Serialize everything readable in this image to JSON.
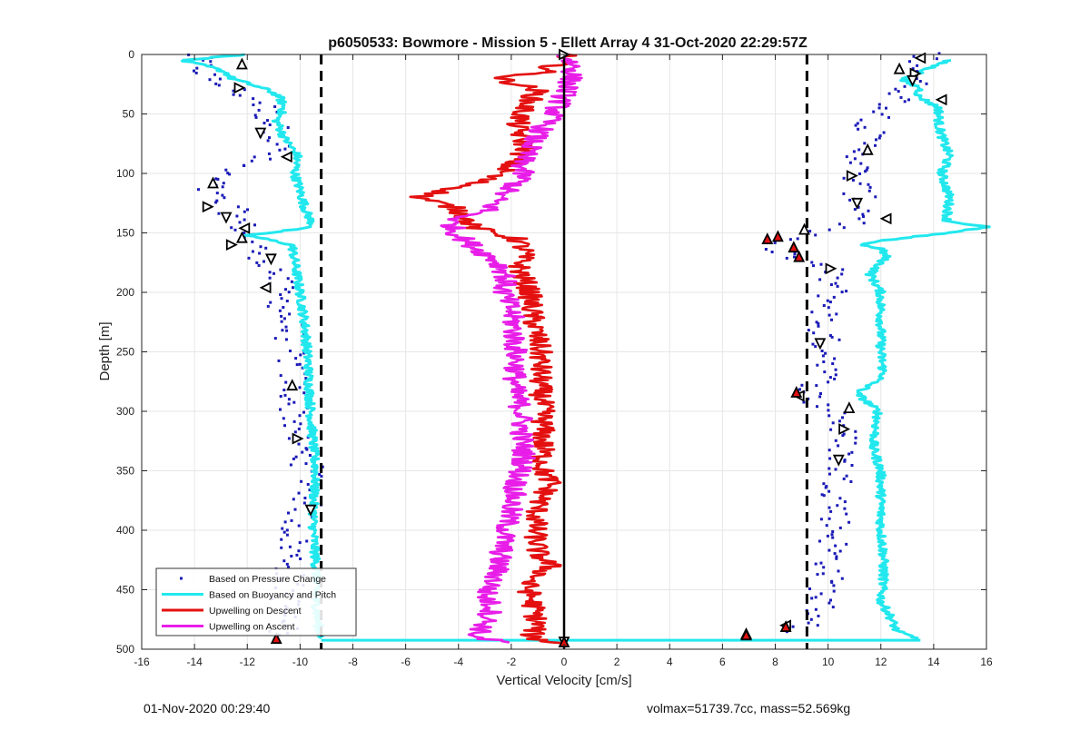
{
  "chart_data": {
    "type": "scatter",
    "title": "p6050533: Bowmore - Mission 5 - Ellett Array 4 31-Oct-2020 22:29:57Z",
    "xlabel": "Vertical Velocity [cm/s]",
    "ylabel": "Depth [m]",
    "xlim": [
      -16,
      16
    ],
    "ylim": [
      0,
      500
    ],
    "y_reversed": true,
    "grid": true,
    "legend_position": "bottom-left",
    "xticks": [
      -16,
      -14,
      -12,
      -10,
      -8,
      -6,
      -4,
      -2,
      0,
      2,
      4,
      6,
      8,
      10,
      12,
      14,
      16
    ],
    "yticks": [
      0,
      50,
      100,
      150,
      200,
      250,
      300,
      350,
      400,
      450,
      500
    ],
    "reference_lines": {
      "zero": {
        "x": 0,
        "color": "#000000",
        "style": "solid"
      },
      "limits": {
        "x": [
          -9.2,
          9.2
        ],
        "color": "#000000",
        "style": "dashed"
      }
    },
    "series": [
      {
        "name": "Based on Pressure Change",
        "kind": "markers",
        "color": "#1a1ab8",
        "descent_anchors": [
          [
            0,
            -14
          ],
          [
            20,
            -13.5
          ],
          [
            40,
            -11.5
          ],
          [
            60,
            -11
          ],
          [
            80,
            -10.8
          ],
          [
            100,
            -13
          ],
          [
            115,
            -13.6
          ],
          [
            130,
            -12.6
          ],
          [
            140,
            -12.3
          ],
          [
            160,
            -11.8
          ],
          [
            180,
            -11
          ],
          [
            200,
            -10.8
          ],
          [
            230,
            -10.4
          ],
          [
            260,
            -10.3
          ],
          [
            300,
            -10.2
          ],
          [
            330,
            -10
          ],
          [
            360,
            -9.5
          ],
          [
            380,
            -9.8
          ],
          [
            400,
            -10.2
          ],
          [
            440,
            -10.4
          ],
          [
            480,
            -10.6
          ],
          [
            490,
            -10.8
          ]
        ],
        "ascent_anchors": [
          [
            0,
            13.8
          ],
          [
            20,
            13.4
          ],
          [
            40,
            12.6
          ],
          [
            60,
            11.6
          ],
          [
            80,
            11.4
          ],
          [
            100,
            11
          ],
          [
            120,
            11.2
          ],
          [
            140,
            11.5
          ],
          [
            150,
            9.2
          ],
          [
            158,
            8
          ],
          [
            170,
            8.5
          ],
          [
            180,
            10
          ],
          [
            200,
            10.2
          ],
          [
            230,
            9.7
          ],
          [
            260,
            10.2
          ],
          [
            290,
            9.2
          ],
          [
            300,
            10.4
          ],
          [
            330,
            10.6
          ],
          [
            360,
            10.4
          ],
          [
            400,
            10.3
          ],
          [
            440,
            10
          ],
          [
            480,
            9.5
          ],
          [
            488,
            7.2
          ]
        ]
      },
      {
        "name": "Based on Buoyancy and Pitch",
        "kind": "line",
        "color": "#22e8ee",
        "descent_anchors": [
          [
            0,
            -12
          ],
          [
            5,
            -14.5
          ],
          [
            10,
            -13.5
          ],
          [
            15,
            -12.8
          ],
          [
            20,
            -12.6
          ],
          [
            25,
            -11.9
          ],
          [
            30,
            -11.2
          ],
          [
            35,
            -10.8
          ],
          [
            45,
            -10.6
          ],
          [
            55,
            -10.9
          ],
          [
            70,
            -10.6
          ],
          [
            85,
            -10.1
          ],
          [
            100,
            -10.2
          ],
          [
            115,
            -10.0
          ],
          [
            130,
            -9.8
          ],
          [
            145,
            -9.5
          ],
          [
            152,
            -12.0
          ],
          [
            160,
            -10.3
          ],
          [
            175,
            -10.2
          ],
          [
            200,
            -10.0
          ],
          [
            230,
            -9.8
          ],
          [
            260,
            -9.7
          ],
          [
            300,
            -9.6
          ],
          [
            330,
            -9.5
          ],
          [
            350,
            -9.4
          ],
          [
            380,
            -9.5
          ],
          [
            400,
            -9.5
          ],
          [
            430,
            -9.4
          ],
          [
            460,
            -9.4
          ],
          [
            480,
            -9.3
          ],
          [
            491,
            -9.2
          ]
        ],
        "ascent_anchors": [
          [
            492,
            13.5
          ],
          [
            485,
            12.6
          ],
          [
            470,
            12.3
          ],
          [
            460,
            12.0
          ],
          [
            440,
            12.1
          ],
          [
            420,
            12.1
          ],
          [
            400,
            12.0
          ],
          [
            380,
            12.0
          ],
          [
            350,
            12.0
          ],
          [
            330,
            11.7
          ],
          [
            300,
            11.9
          ],
          [
            285,
            11.1
          ],
          [
            270,
            12.1
          ],
          [
            250,
            12.0
          ],
          [
            230,
            12.0
          ],
          [
            200,
            12.0
          ],
          [
            185,
            11.6
          ],
          [
            170,
            12.2
          ],
          [
            163,
            12.0
          ],
          [
            160,
            11.2
          ],
          [
            155,
            12.5
          ],
          [
            150,
            14.5
          ],
          [
            145,
            16.0
          ],
          [
            140,
            14.5
          ],
          [
            120,
            14.6
          ],
          [
            100,
            14.3
          ],
          [
            85,
            14.6
          ],
          [
            75,
            14.4
          ],
          [
            60,
            14.2
          ],
          [
            45,
            14.2
          ],
          [
            40,
            13.8
          ],
          [
            35,
            13.4
          ],
          [
            28,
            13.5
          ],
          [
            22,
            12.8
          ],
          [
            15,
            13.5
          ],
          [
            5,
            14.5
          ]
        ],
        "bottom_turn": {
          "depth": 492.5,
          "from": -9.2,
          "to": 13.5
        }
      },
      {
        "name": "Upwelling on Descent",
        "kind": "line",
        "color": "#e41010",
        "anchors": [
          [
            0,
            0.1
          ],
          [
            8,
            -0.3
          ],
          [
            15,
            -0.8
          ],
          [
            20,
            -2.5
          ],
          [
            30,
            -1.0
          ],
          [
            45,
            -1.5
          ],
          [
            60,
            -1.8
          ],
          [
            80,
            -1.4
          ],
          [
            100,
            -2.4
          ],
          [
            110,
            -3.6
          ],
          [
            120,
            -5.5
          ],
          [
            130,
            -4.0
          ],
          [
            145,
            -3.5
          ],
          [
            155,
            -1.8
          ],
          [
            165,
            -1.5
          ],
          [
            180,
            -1.7
          ],
          [
            200,
            -1.3
          ],
          [
            220,
            -1.2
          ],
          [
            250,
            -0.9
          ],
          [
            280,
            -0.9
          ],
          [
            300,
            -0.8
          ],
          [
            330,
            -0.8
          ],
          [
            350,
            -0.8
          ],
          [
            360,
            -0.5
          ],
          [
            380,
            -1.0
          ],
          [
            400,
            -1.1
          ],
          [
            420,
            -1.0
          ],
          [
            430,
            -0.5
          ],
          [
            445,
            -1.4
          ],
          [
            460,
            -1.2
          ],
          [
            480,
            -1.0
          ],
          [
            490,
            -1.3
          ],
          [
            495,
            -0.2
          ]
        ]
      },
      {
        "name": "Upwelling on Ascent",
        "kind": "line",
        "color": "#e81ee8",
        "anchors": [
          [
            0,
            0.0
          ],
          [
            10,
            0.4
          ],
          [
            30,
            0.1
          ],
          [
            50,
            -0.4
          ],
          [
            70,
            -1.1
          ],
          [
            90,
            -1.6
          ],
          [
            105,
            -1.6
          ],
          [
            120,
            -2.5
          ],
          [
            130,
            -2.8
          ],
          [
            140,
            -4.3
          ],
          [
            150,
            -4.1
          ],
          [
            160,
            -3.5
          ],
          [
            175,
            -2.5
          ],
          [
            185,
            -2.2
          ],
          [
            200,
            -2.3
          ],
          [
            215,
            -2.0
          ],
          [
            230,
            -1.9
          ],
          [
            260,
            -1.8
          ],
          [
            280,
            -1.9
          ],
          [
            300,
            -1.6
          ],
          [
            320,
            -1.6
          ],
          [
            340,
            -1.5
          ],
          [
            360,
            -1.8
          ],
          [
            380,
            -2.0
          ],
          [
            400,
            -2.2
          ],
          [
            420,
            -2.4
          ],
          [
            440,
            -2.6
          ],
          [
            455,
            -3.0
          ],
          [
            465,
            -2.7
          ],
          [
            480,
            -3.0
          ],
          [
            490,
            -3.4
          ],
          [
            495,
            -2.0
          ]
        ]
      }
    ],
    "markers": {
      "white_triangles": [
        [
          8,
          -12.2
        ],
        [
          28,
          -12.3
        ],
        [
          66,
          -11.5
        ],
        [
          86,
          -10.5
        ],
        [
          108,
          -13.3
        ],
        [
          128,
          -13.5
        ],
        [
          137,
          -12.8
        ],
        [
          146,
          -12.1
        ],
        [
          154,
          -12.2
        ],
        [
          160,
          -12.6
        ],
        [
          172,
          -11.1
        ],
        [
          196,
          -11.3
        ],
        [
          278,
          -10.3
        ],
        [
          323,
          -10.1
        ],
        [
          383,
          -9.6
        ],
        [
          3,
          13.5
        ],
        [
          12,
          12.7
        ],
        [
          16,
          13.3
        ],
        [
          22,
          13.2
        ],
        [
          38,
          14.3
        ],
        [
          80,
          11.5
        ],
        [
          102,
          10.9
        ],
        [
          125,
          11.1
        ],
        [
          138,
          12.2
        ],
        [
          147,
          9.1
        ],
        [
          180,
          10.1
        ],
        [
          243,
          9.7
        ],
        [
          287,
          8.9
        ],
        [
          297,
          10.8
        ],
        [
          315,
          10.6
        ],
        [
          341,
          10.4
        ],
        [
          480,
          8.4
        ],
        [
          487,
          6.9
        ],
        [
          0,
          0.0
        ],
        [
          494,
          0.0
        ]
      ],
      "red_triangles": [
        [
          491,
          -10.9
        ],
        [
          155,
          7.7
        ],
        [
          153,
          8.1
        ],
        [
          162,
          8.7
        ],
        [
          170,
          8.9
        ],
        [
          284,
          8.8
        ],
        [
          488,
          6.9
        ],
        [
          481,
          8.4
        ],
        [
          494,
          0.0
        ]
      ]
    },
    "legend": {
      "entries": [
        "Based on Pressure Change",
        "Based on Buoyancy and Pitch",
        "Upwelling on Descent",
        "Upwelling on Ascent"
      ]
    }
  },
  "footer": {
    "left": "01-Nov-2020 00:29:40",
    "right": "volmax=51739.7cc, mass=52.569kg"
  }
}
